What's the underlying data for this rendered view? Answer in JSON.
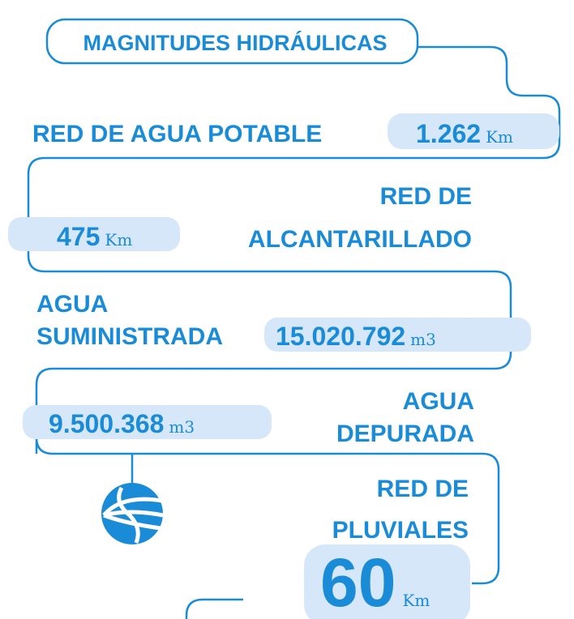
{
  "header": {
    "title": "MAGNITUDES HIDRÁULICAS"
  },
  "items": [
    {
      "label": [
        "RED DE AGUA POTABLE"
      ],
      "value": "1.262",
      "unit": "Km"
    },
    {
      "label": [
        "RED DE",
        "ALCANTARILLADO"
      ],
      "value": "475",
      "unit": "Km"
    },
    {
      "label": [
        "AGUA",
        "SUMINISTRADA"
      ],
      "value": "15.020.792",
      "unit": "m3"
    },
    {
      "label": [
        "AGUA",
        "DEPURADA"
      ],
      "value": "9.500.368",
      "unit": "m3"
    },
    {
      "label": [
        "RED DE",
        "PLUVIALES"
      ],
      "value": "60",
      "unit": "Km"
    }
  ]
}
